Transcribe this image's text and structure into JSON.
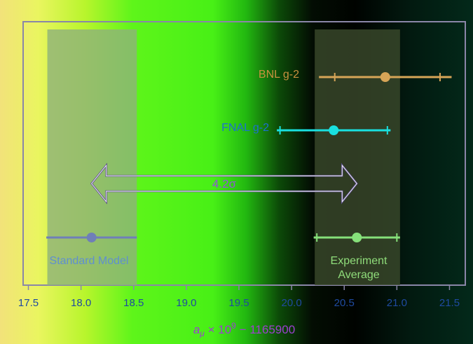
{
  "chart_data": {
    "type": "errorbar",
    "xlabel": "a_μ × 10^9 − 1165900",
    "xlabel_parts": {
      "base": "a",
      "sub": "μ",
      "times": "× 10",
      "exp": "9",
      "rest": " − 1165900"
    },
    "xlim": [
      17.45,
      21.65
    ],
    "ticks": [
      "17.5",
      "18.0",
      "18.5",
      "19.0",
      "19.5",
      "20.0",
      "20.5",
      "21.0",
      "21.5"
    ],
    "tick_values": [
      17.5,
      18.0,
      18.5,
      19.0,
      19.5,
      20.0,
      20.5,
      21.0,
      21.5
    ],
    "bands": [
      {
        "name": "standard-model-band",
        "low": 17.68,
        "high": 18.53,
        "color": "#8fb27a"
      },
      {
        "name": "experiment-average-band",
        "low": 20.22,
        "high": 21.03,
        "color": "#3b4a2c"
      }
    ],
    "measurements": [
      {
        "label": "BNL g-2",
        "value": 20.89,
        "stat_err": 0.54,
        "sys_err": 0.63,
        "color": "#d7a557",
        "text_color": "#c8913f",
        "align": "left"
      },
      {
        "label": "FNAL g-2",
        "value": 20.4,
        "stat_err": 0.54,
        "sys_err": 0.54,
        "color": "#19e0e0",
        "text_color": "#1c6fd0",
        "align": "left"
      },
      {
        "label": "Standard Model",
        "value": 18.1,
        "stat_err": 0.43,
        "sys_err": 0.43,
        "color": "#6f7fb8",
        "text_color": "#5f8fd0",
        "align": "below"
      },
      {
        "label": "Experiment",
        "label2": "Average",
        "value": 20.62,
        "stat_err": 0.41,
        "sys_err": 0.41,
        "color": "#86e07a",
        "text_color": "#8fdc7a",
        "align": "below"
      }
    ],
    "tension": {
      "label": "4.2σ",
      "from": 18.1,
      "to": 20.62
    }
  }
}
